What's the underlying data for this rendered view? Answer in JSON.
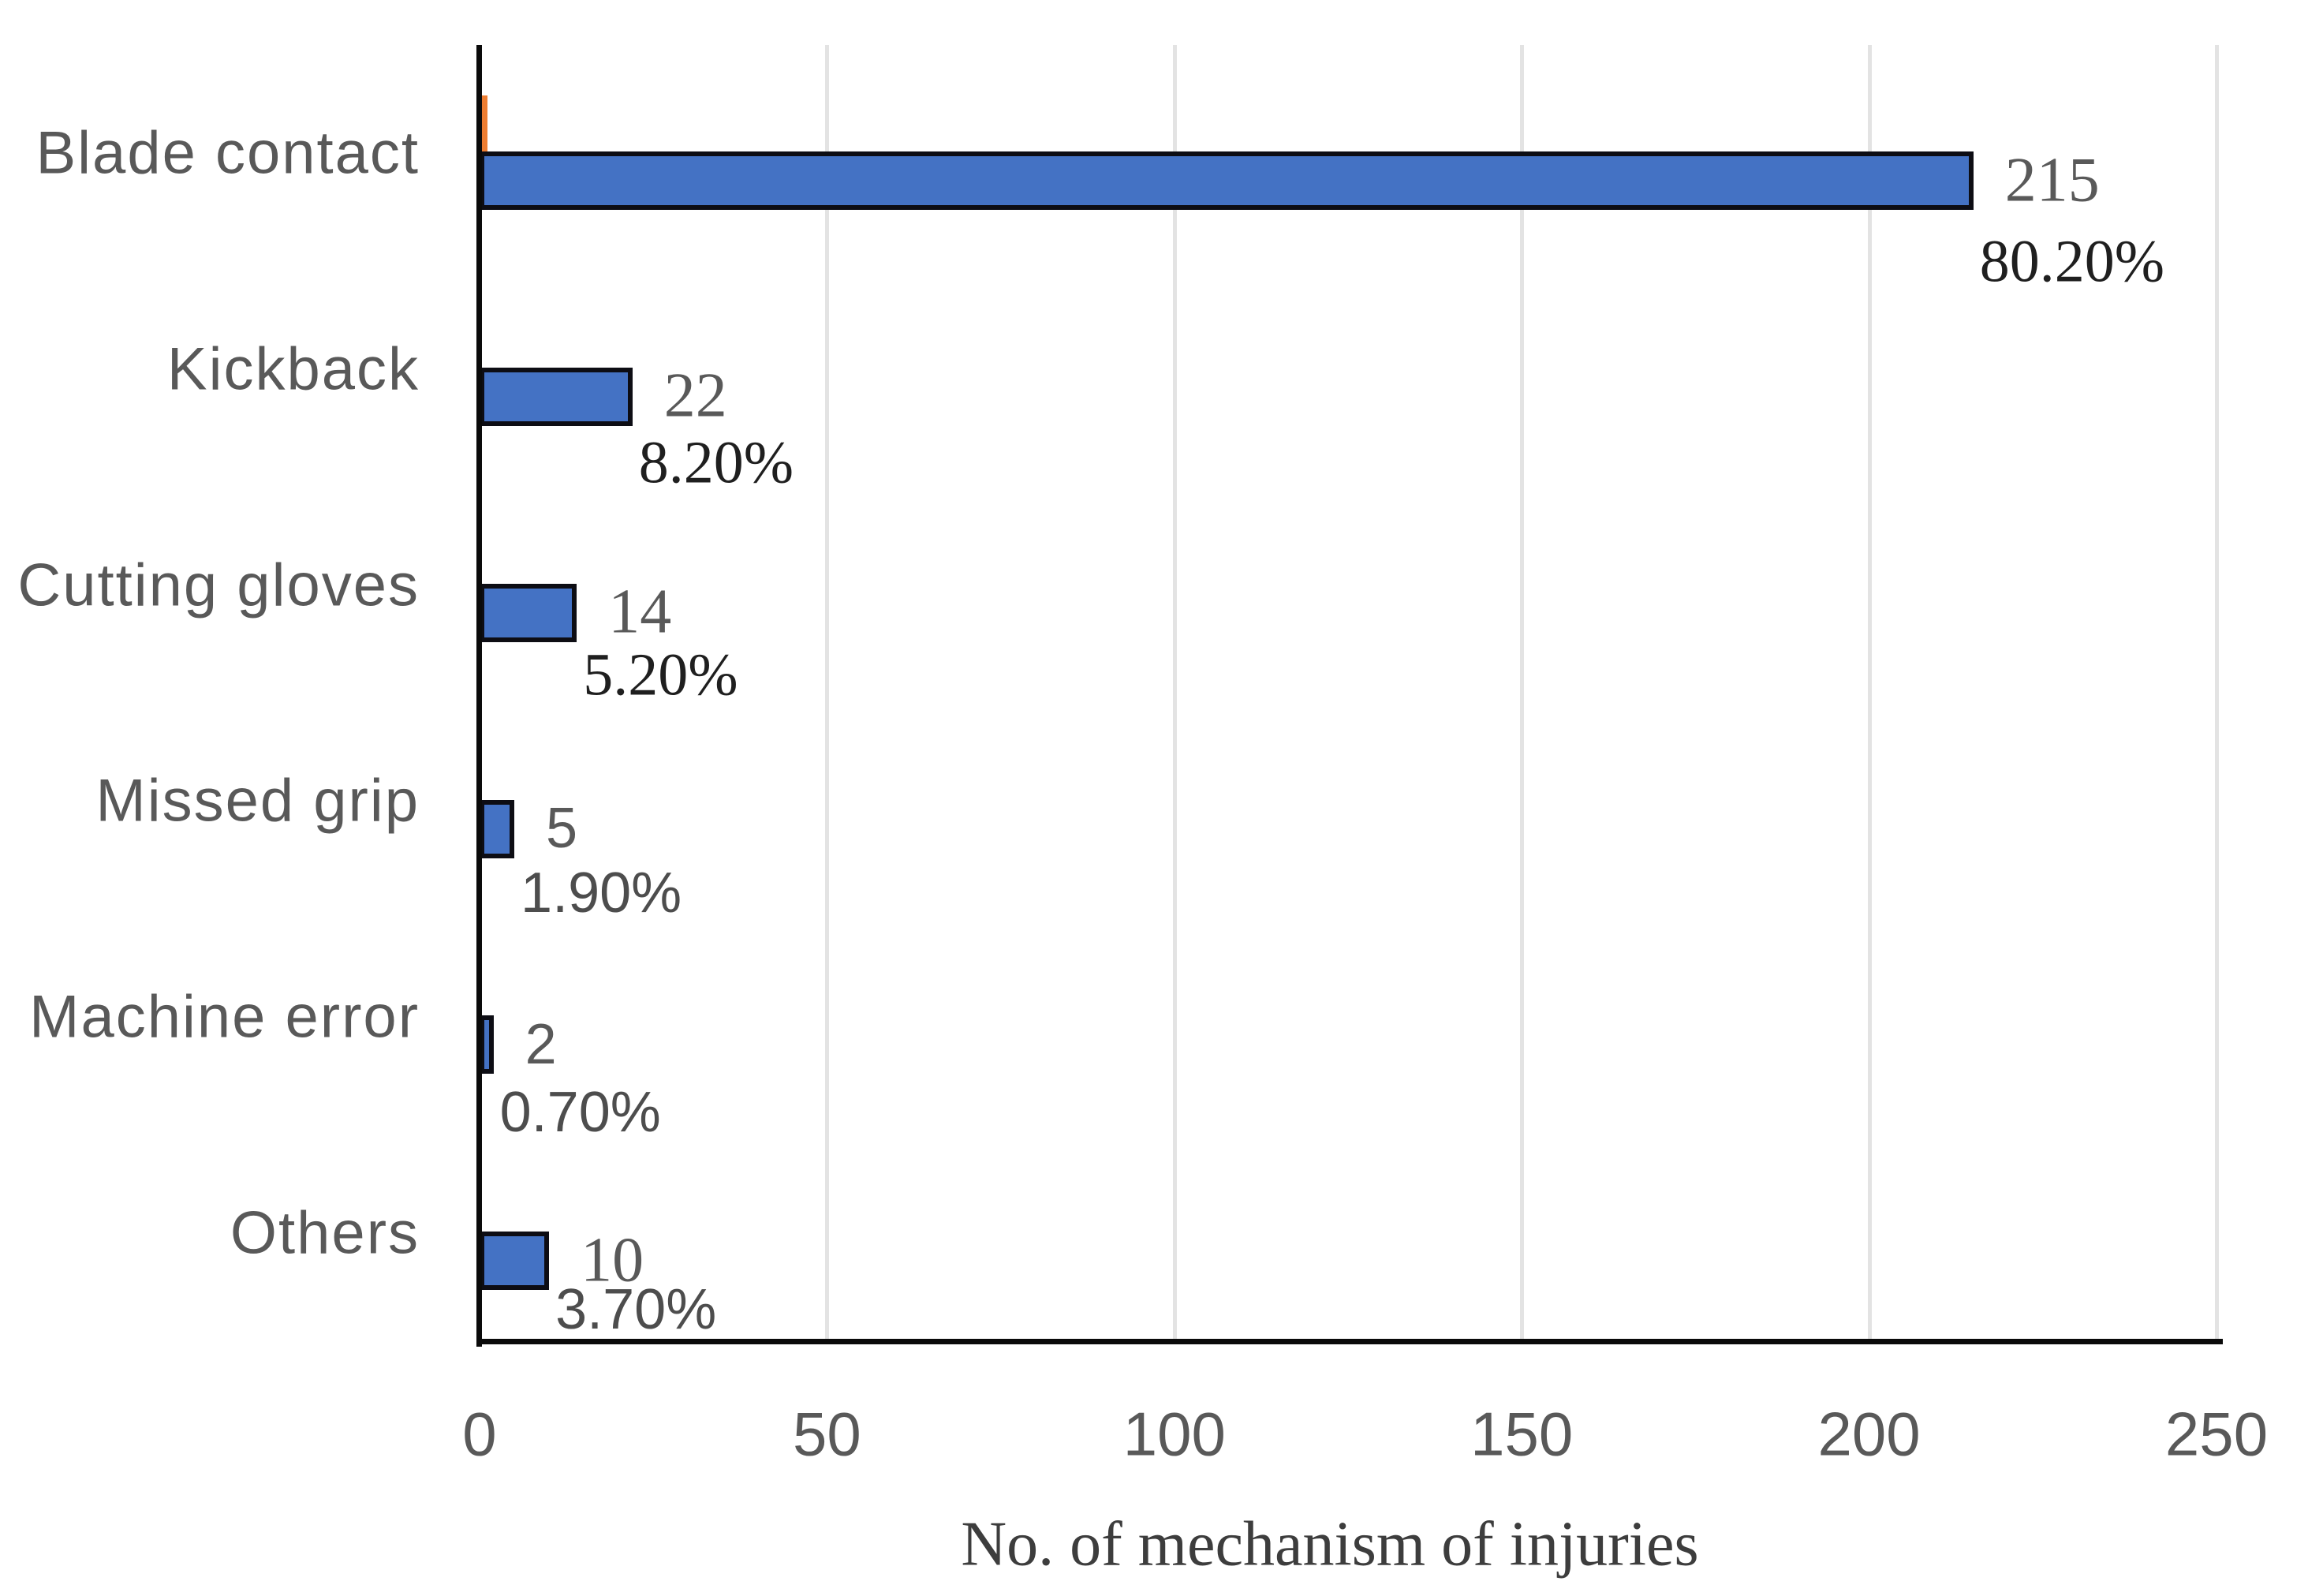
{
  "chart_data": {
    "type": "bar",
    "orientation": "horizontal",
    "title": "",
    "xlabel": "No. of mechanism of injuries",
    "ylabel": "",
    "categories": [
      "Blade contact",
      "Kickback",
      "Cutting gloves",
      "Missed grip",
      "Machine error",
      "Others"
    ],
    "series": [
      {
        "name": "count",
        "color": "#4472C4",
        "values": [
          215,
          22,
          14,
          5,
          2,
          10
        ]
      }
    ],
    "count_labels": [
      "215",
      "22",
      "14",
      "5",
      "2",
      "10"
    ],
    "percent_labels": [
      "80.20%",
      "8.20%",
      "5.20%",
      "1.90%",
      "0.70%",
      "3.70%"
    ],
    "x_ticks": [
      "0",
      "50",
      "100",
      "150",
      "200",
      "250"
    ],
    "x_tick_values": [
      0,
      50,
      100,
      150,
      200,
      250
    ],
    "xlim": [
      0,
      250
    ],
    "grid": "vertical-light-gray",
    "legend": "none",
    "bar_fill_color": "#4472C4",
    "bar_border_color": "#0d0d14",
    "gridline_color": "#e3e3e3",
    "axis_line_color": "#0a0a0a",
    "label_gray_color": "#595959",
    "percent_dark_color": "#1f1f1f",
    "orange_sliver": {
      "category": "Blade contact",
      "color": "#ED7D31",
      "approx_value": 0.8
    }
  }
}
